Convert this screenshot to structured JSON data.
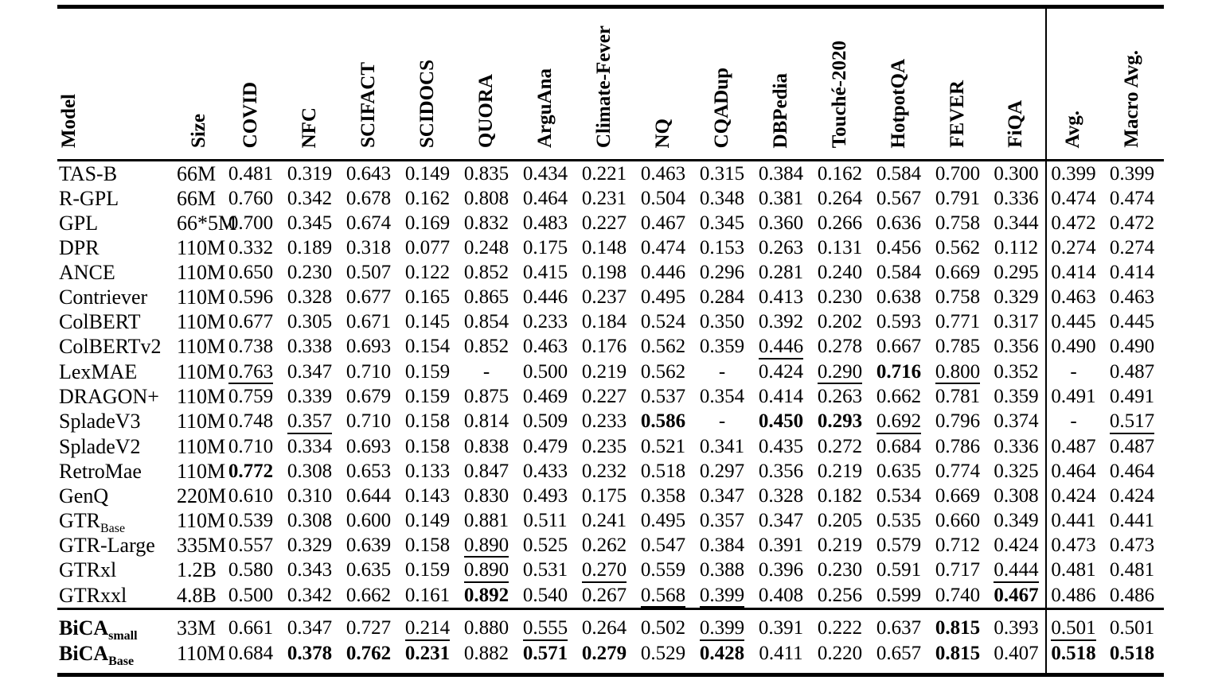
{
  "page": {
    "background": "#ffffff",
    "text_color": "#000000"
  },
  "table": {
    "columns": [
      "Model",
      "Size",
      "COVID",
      "NFC",
      "SCIFACT",
      "SCIDOCS",
      "QUORA",
      "ArguAna",
      "Climate-Fever",
      "NQ",
      "CQADup",
      "DBPedia",
      "Touché-2020",
      "HotpotQA",
      "FEVER",
      "FiQA",
      "Avg.",
      "Macro Avg."
    ],
    "rows": [
      {
        "model": "TAS-B",
        "sub": "",
        "size": "66M",
        "cells": [
          "0.481",
          "0.319",
          "0.643",
          "0.149",
          "0.835",
          "0.434",
          "0.221",
          "0.463",
          "0.315",
          "0.384",
          "0.162",
          "0.584",
          "0.700",
          "0.300",
          "0.399",
          "0.399"
        ],
        "marks": [
          "",
          "",
          "",
          "",
          "",
          "",
          "",
          "",
          "",
          "",
          "",
          "",
          "",
          "",
          "",
          ""
        ]
      },
      {
        "model": "R-GPL",
        "sub": "",
        "size": "66M",
        "cells": [
          "0.760",
          "0.342",
          "0.678",
          "0.162",
          "0.808",
          "0.464",
          "0.231",
          "0.504",
          "0.348",
          "0.381",
          "0.264",
          "0.567",
          "0.791",
          "0.336",
          "0.474",
          "0.474"
        ],
        "marks": [
          "",
          "",
          "",
          "",
          "",
          "",
          "",
          "",
          "",
          "",
          "",
          "",
          "",
          "",
          "",
          ""
        ]
      },
      {
        "model": "GPL",
        "sub": "",
        "size": "66*5M",
        "cells": [
          "0.700",
          "0.345",
          "0.674",
          "0.169",
          "0.832",
          "0.483",
          "0.227",
          "0.467",
          "0.345",
          "0.360",
          "0.266",
          "0.636",
          "0.758",
          "0.344",
          "0.472",
          "0.472"
        ],
        "marks": [
          "",
          "",
          "",
          "",
          "",
          "",
          "",
          "",
          "",
          "",
          "",
          "",
          "",
          "",
          "",
          ""
        ]
      },
      {
        "model": "DPR",
        "sub": "",
        "size": "110M",
        "cells": [
          "0.332",
          "0.189",
          "0.318",
          "0.077",
          "0.248",
          "0.175",
          "0.148",
          "0.474",
          "0.153",
          "0.263",
          "0.131",
          "0.456",
          "0.562",
          "0.112",
          "0.274",
          "0.274"
        ],
        "marks": [
          "",
          "",
          "",
          "",
          "",
          "",
          "",
          "",
          "",
          "",
          "",
          "",
          "",
          "",
          "",
          ""
        ]
      },
      {
        "model": "ANCE",
        "sub": "",
        "size": "110M",
        "cells": [
          "0.650",
          "0.230",
          "0.507",
          "0.122",
          "0.852",
          "0.415",
          "0.198",
          "0.446",
          "0.296",
          "0.281",
          "0.240",
          "0.584",
          "0.669",
          "0.295",
          "0.414",
          "0.414"
        ],
        "marks": [
          "",
          "",
          "",
          "",
          "",
          "",
          "",
          "",
          "",
          "",
          "",
          "",
          "",
          "",
          "",
          ""
        ]
      },
      {
        "model": "Contriever",
        "sub": "",
        "size": "110M",
        "cells": [
          "0.596",
          "0.328",
          "0.677",
          "0.165",
          "0.865",
          "0.446",
          "0.237",
          "0.495",
          "0.284",
          "0.413",
          "0.230",
          "0.638",
          "0.758",
          "0.329",
          "0.463",
          "0.463"
        ],
        "marks": [
          "",
          "",
          "",
          "",
          "",
          "",
          "",
          "",
          "",
          "",
          "",
          "",
          "",
          "",
          "",
          ""
        ]
      },
      {
        "model": "ColBERT",
        "sub": "",
        "size": "110M",
        "cells": [
          "0.677",
          "0.305",
          "0.671",
          "0.145",
          "0.854",
          "0.233",
          "0.184",
          "0.524",
          "0.350",
          "0.392",
          "0.202",
          "0.593",
          "0.771",
          "0.317",
          "0.445",
          "0.445"
        ],
        "marks": [
          "",
          "",
          "",
          "",
          "",
          "",
          "",
          "",
          "",
          "",
          "",
          "",
          "",
          "",
          "",
          ""
        ]
      },
      {
        "model": "ColBERTv2",
        "sub": "",
        "size": "110M",
        "cells": [
          "0.738",
          "0.338",
          "0.693",
          "0.154",
          "0.852",
          "0.463",
          "0.176",
          "0.562",
          "0.359",
          "0.446",
          "0.278",
          "0.667",
          "0.785",
          "0.356",
          "0.490",
          "0.490"
        ],
        "marks": [
          "",
          "",
          "",
          "",
          "",
          "",
          "",
          "",
          "",
          "u",
          "",
          "",
          "",
          "",
          "",
          ""
        ]
      },
      {
        "model": "LexMAE",
        "sub": "",
        "size": "110M",
        "cells": [
          "0.763",
          "0.347",
          "0.710",
          "0.159",
          "-",
          "0.500",
          "0.219",
          "0.562",
          "-",
          "0.424",
          "0.290",
          "0.716",
          "0.800",
          "0.352",
          "-",
          "0.487"
        ],
        "marks": [
          "u",
          "",
          "",
          "",
          "",
          "",
          "",
          "",
          "",
          "",
          "u",
          "b",
          "u",
          "",
          "",
          ""
        ]
      },
      {
        "model": "DRAGON+",
        "sub": "",
        "size": "110M",
        "cells": [
          "0.759",
          "0.339",
          "0.679",
          "0.159",
          "0.875",
          "0.469",
          "0.227",
          "0.537",
          "0.354",
          "0.414",
          "0.263",
          "0.662",
          "0.781",
          "0.359",
          "0.491",
          "0.491"
        ],
        "marks": [
          "",
          "",
          "",
          "",
          "",
          "",
          "",
          "",
          "",
          "",
          "",
          "",
          "",
          "",
          "",
          ""
        ]
      },
      {
        "model": "SpladeV3",
        "sub": "",
        "size": "110M",
        "cells": [
          "0.748",
          "0.357",
          "0.710",
          "0.158",
          "0.814",
          "0.509",
          "0.233",
          "0.586",
          "-",
          "0.450",
          "0.293",
          "0.692",
          "0.796",
          "0.374",
          "-",
          "0.517"
        ],
        "marks": [
          "",
          "u",
          "",
          "",
          "",
          "",
          "",
          "b",
          "",
          "b",
          "b",
          "u",
          "",
          "",
          "",
          "u"
        ]
      },
      {
        "model": "SpladeV2",
        "sub": "",
        "size": "110M",
        "cells": [
          "0.710",
          "0.334",
          "0.693",
          "0.158",
          "0.838",
          "0.479",
          "0.235",
          "0.521",
          "0.341",
          "0.435",
          "0.272",
          "0.684",
          "0.786",
          "0.336",
          "0.487",
          "0.487"
        ],
        "marks": [
          "",
          "",
          "",
          "",
          "",
          "",
          "",
          "",
          "",
          "",
          "",
          "",
          "",
          "",
          "",
          ""
        ]
      },
      {
        "model": "RetroMae",
        "sub": "",
        "size": "110M",
        "cells": [
          "0.772",
          "0.308",
          "0.653",
          "0.133",
          "0.847",
          "0.433",
          "0.232",
          "0.518",
          "0.297",
          "0.356",
          "0.219",
          "0.635",
          "0.774",
          "0.325",
          "0.464",
          "0.464"
        ],
        "marks": [
          "b",
          "",
          "",
          "",
          "",
          "",
          "",
          "",
          "",
          "",
          "",
          "",
          "",
          "",
          "",
          ""
        ]
      },
      {
        "model": "GenQ",
        "sub": "",
        "size": "220M",
        "cells": [
          "0.610",
          "0.310",
          "0.644",
          "0.143",
          "0.830",
          "0.493",
          "0.175",
          "0.358",
          "0.347",
          "0.328",
          "0.182",
          "0.534",
          "0.669",
          "0.308",
          "0.424",
          "0.424"
        ],
        "marks": [
          "",
          "",
          "",
          "",
          "",
          "",
          "",
          "",
          "",
          "",
          "",
          "",
          "",
          "",
          "",
          ""
        ]
      },
      {
        "model": "GTR",
        "sub": "Base",
        "size": "110M",
        "cells": [
          "0.539",
          "0.308",
          "0.600",
          "0.149",
          "0.881",
          "0.511",
          "0.241",
          "0.495",
          "0.357",
          "0.347",
          "0.205",
          "0.535",
          "0.660",
          "0.349",
          "0.441",
          "0.441"
        ],
        "marks": [
          "",
          "",
          "",
          "",
          "",
          "",
          "",
          "",
          "",
          "",
          "",
          "",
          "",
          "",
          "",
          ""
        ]
      },
      {
        "model": "GTR-Large",
        "sub": "",
        "size": "335M",
        "cells": [
          "0.557",
          "0.329",
          "0.639",
          "0.158",
          "0.890",
          "0.525",
          "0.262",
          "0.547",
          "0.384",
          "0.391",
          "0.219",
          "0.579",
          "0.712",
          "0.424",
          "0.473",
          "0.473"
        ],
        "marks": [
          "",
          "",
          "",
          "",
          "u",
          "",
          "",
          "",
          "",
          "",
          "",
          "",
          "",
          "",
          "",
          ""
        ]
      },
      {
        "model": "GTRxl",
        "sub": "",
        "size": "1.2B",
        "cells": [
          "0.580",
          "0.343",
          "0.635",
          "0.159",
          "0.890",
          "0.531",
          "0.270",
          "0.559",
          "0.388",
          "0.396",
          "0.230",
          "0.591",
          "0.717",
          "0.444",
          "0.481",
          "0.481"
        ],
        "marks": [
          "",
          "",
          "",
          "",
          "u",
          "",
          "u",
          "",
          "",
          "",
          "",
          "",
          "",
          "u",
          "",
          ""
        ]
      },
      {
        "model": "GTRxxl",
        "sub": "",
        "size": "4.8B",
        "cells": [
          "0.500",
          "0.342",
          "0.662",
          "0.161",
          "0.892",
          "0.540",
          "0.267",
          "0.568",
          "0.399",
          "0.408",
          "0.256",
          "0.599",
          "0.740",
          "0.467",
          "0.486",
          "0.486"
        ],
        "marks": [
          "",
          "",
          "",
          "",
          "b",
          "",
          "",
          "u",
          "u",
          "",
          "",
          "",
          "",
          "b",
          "",
          ""
        ]
      }
    ],
    "footer_rows": [
      {
        "model": "BiCA",
        "sub": "small",
        "size": "33M",
        "cells": [
          "0.661",
          "0.347",
          "0.727",
          "0.214",
          "0.880",
          "0.555",
          "0.264",
          "0.502",
          "0.399",
          "0.391",
          "0.222",
          "0.637",
          "0.815",
          "0.393",
          "0.501",
          "0.501"
        ],
        "marks": [
          "",
          "",
          "",
          "u",
          "",
          "u",
          "",
          "",
          "u",
          "",
          "",
          "",
          "b",
          "",
          "u",
          ""
        ]
      },
      {
        "model": "BiCA",
        "sub": "Base",
        "size": "110M",
        "cells": [
          "0.684",
          "0.378",
          "0.762",
          "0.231",
          "0.882",
          "0.571",
          "0.279",
          "0.529",
          "0.428",
          "0.411",
          "0.220",
          "0.657",
          "0.815",
          "0.407",
          "0.518",
          "0.518"
        ],
        "marks": [
          "",
          "b",
          "b",
          "b",
          "",
          "b",
          "b",
          "",
          "b",
          "",
          "",
          "",
          "b",
          "",
          "b",
          "b"
        ]
      }
    ]
  }
}
